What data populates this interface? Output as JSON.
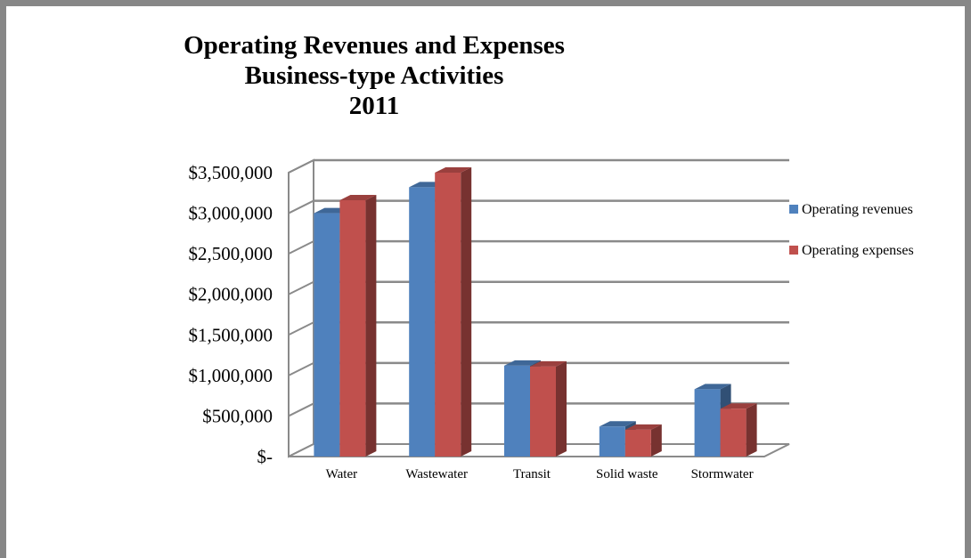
{
  "chart_data": {
    "type": "bar",
    "title_lines": [
      "Operating Revenues and Expenses",
      "Business-type Activities",
      "2011"
    ],
    "categories": [
      "Water",
      "Wastewater",
      "Transit",
      "Solid waste",
      "Stormwater"
    ],
    "series": [
      {
        "name": "Operating revenues",
        "color": "#4F81BD",
        "values": [
          3000000,
          3320000,
          1120000,
          370000,
          830000
        ]
      },
      {
        "name": "Operating expenses",
        "color": "#C0504D",
        "values": [
          3160000,
          3500000,
          1110000,
          330000,
          590000
        ]
      }
    ],
    "ylim": [
      0,
      3500000
    ],
    "yticks": [
      0,
      500000,
      1000000,
      1500000,
      2000000,
      2500000,
      3000000,
      3500000
    ],
    "ytick_labels": [
      "$-",
      "$500,000",
      "$1,000,000",
      "$1,500,000",
      "$2,000,000",
      "$2,500,000",
      "$3,000,000",
      "$3,500,000"
    ],
    "grid": true,
    "legend_position": "right",
    "style": "3d-clustered-column"
  }
}
